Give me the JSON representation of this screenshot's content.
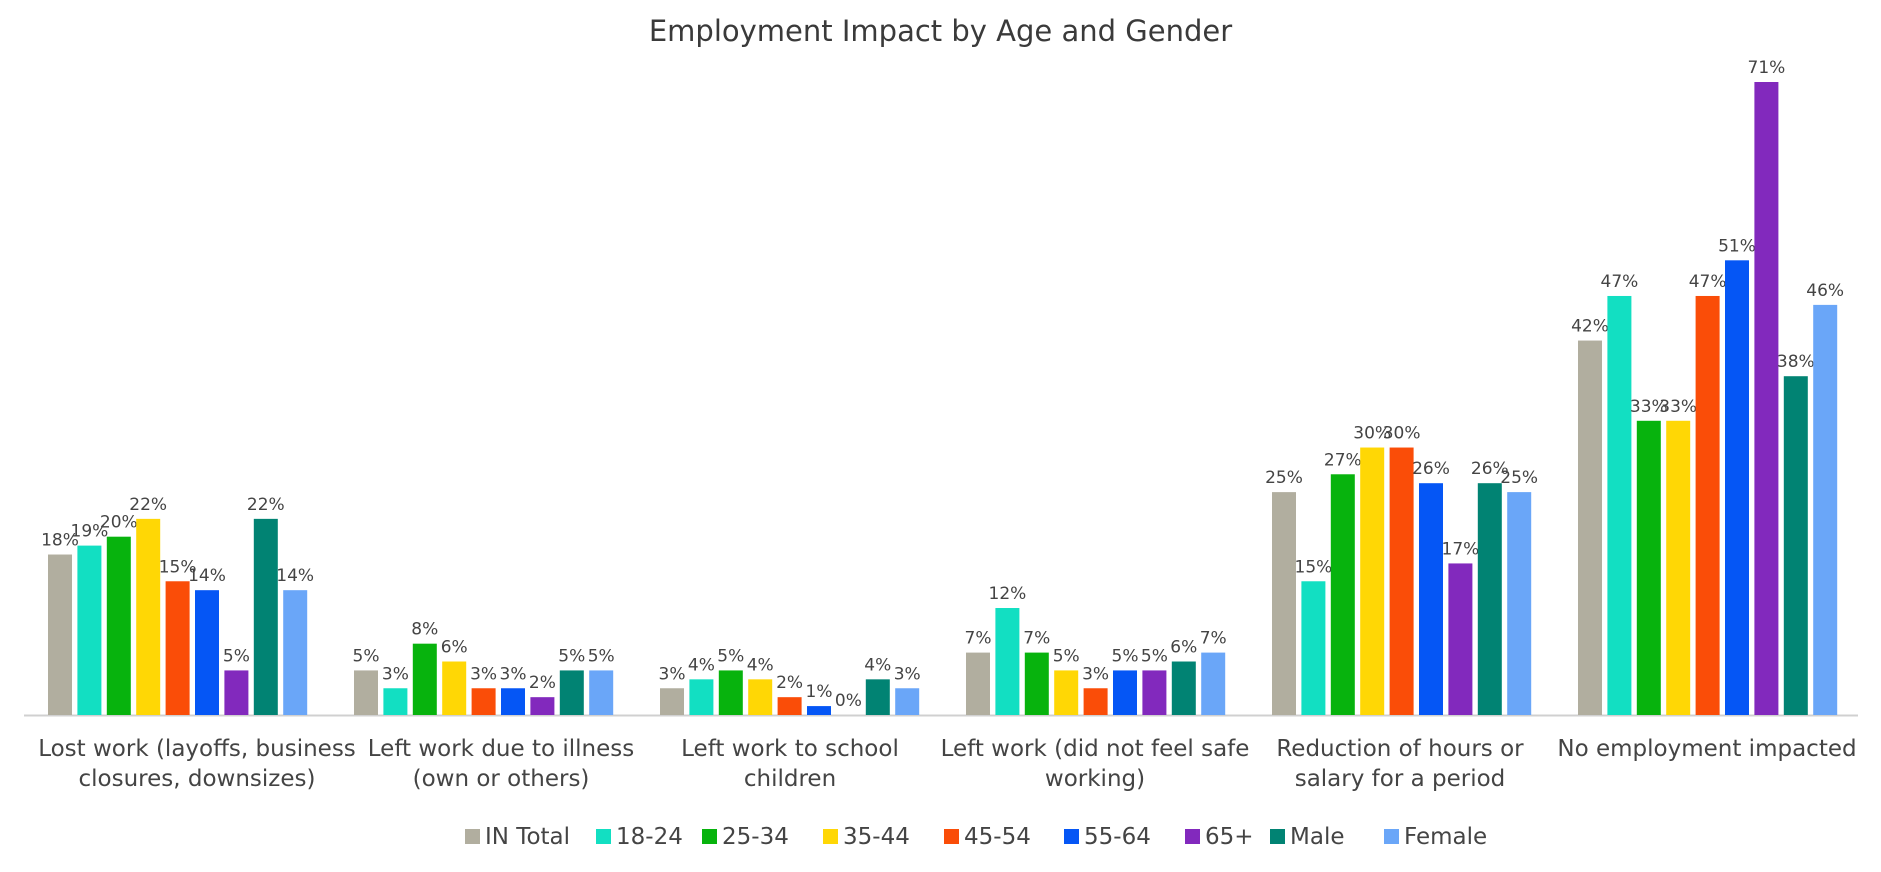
{
  "chart_data": {
    "type": "bar",
    "title": "Employment Impact by Age and Gender",
    "categories": [
      [
        "Lost work (layoffs, business",
        "closures, downsizes)"
      ],
      [
        "Left work due to illness",
        "(own or others)"
      ],
      [
        "Left work to school",
        "children"
      ],
      [
        "Left work (did not feel safe",
        "working)"
      ],
      [
        "Reduction of hours or",
        "salary for a period"
      ],
      [
        "No employment impacted"
      ]
    ],
    "series": [
      {
        "name": "IN Total",
        "color": "#b1ae9f",
        "values": [
          18,
          5,
          3,
          7,
          25,
          42
        ],
        "labels": [
          "18%",
          "5%",
          "3%",
          "7%",
          "25%",
          "42%"
        ]
      },
      {
        "name": "18-24",
        "color": "#12dfc2",
        "values": [
          19,
          3,
          4,
          12,
          15,
          47
        ],
        "labels": [
          "19%",
          "3%",
          "4%",
          "12%",
          "15%",
          "47%"
        ]
      },
      {
        "name": "25-34",
        "color": "#07b30d",
        "values": [
          20,
          8,
          5,
          7,
          27,
          33
        ],
        "labels": [
          "20%",
          "8%",
          "5%",
          "7%",
          "27%",
          "33%"
        ]
      },
      {
        "name": "35-44",
        "color": "#ffd705",
        "values": [
          22,
          6,
          4,
          5,
          30,
          33
        ],
        "labels": [
          "22%",
          "6%",
          "4%",
          "5%",
          "30%",
          "33%"
        ]
      },
      {
        "name": "45-54",
        "color": "#fa4d08",
        "values": [
          15,
          3,
          2,
          3,
          30,
          47
        ],
        "labels": [
          "15%",
          "3%",
          "2%",
          "3%",
          "30%",
          "47%"
        ]
      },
      {
        "name": "55-64",
        "color": "#0556f5",
        "values": [
          14,
          3,
          1,
          5,
          26,
          51
        ],
        "labels": [
          "14%",
          "3%",
          "1%",
          "5%",
          "26%",
          "51%"
        ]
      },
      {
        "name": "65+",
        "color": "#8229bd",
        "values": [
          5,
          2,
          0,
          5,
          17,
          71
        ],
        "labels": [
          "5%",
          "2%",
          "0%",
          "5%",
          "17%",
          "71%"
        ]
      },
      {
        "name": "Male",
        "color": "#018373",
        "values": [
          22,
          5,
          4,
          6,
          26,
          38
        ],
        "labels": [
          "22%",
          "5%",
          "4%",
          "6%",
          "26%",
          "38%"
        ]
      },
      {
        "name": "Female",
        "color": "#6aa6f8",
        "values": [
          14,
          5,
          3,
          7,
          25,
          46
        ],
        "labels": [
          "14%",
          "5%",
          "3%",
          "7%",
          "25%",
          "46%"
        ]
      }
    ],
    "ylim": [
      0,
      71
    ],
    "xlabel": "",
    "ylabel": "",
    "grid": false,
    "legend_position": "bottom",
    "axis_color": "#d0d0d0",
    "text_color": "#444444"
  }
}
